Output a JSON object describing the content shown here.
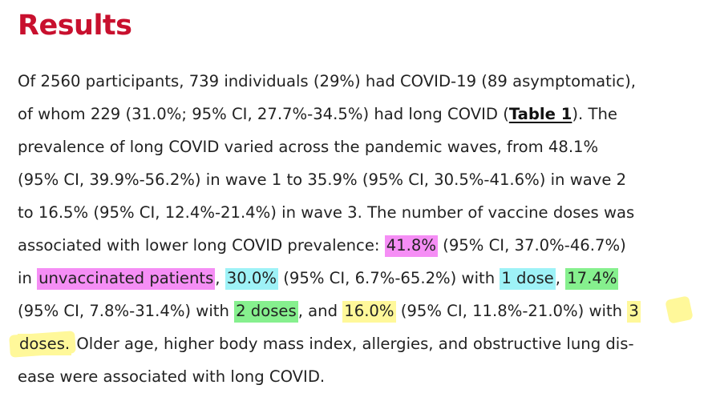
{
  "heading": "Results",
  "lines": [
    [
      {
        "t": "Of 2560 participants, 739 individuals (29%) had COVID-19 (89 asymptomatic),"
      }
    ],
    [
      {
        "t": "of whom 229 (31.0%; 95% CI, 27.7%-34.5%) had long COVID ("
      },
      {
        "t": "Table 1",
        "link": true
      },
      {
        "t": "). The"
      }
    ],
    [
      {
        "t": "prevalence of long COVID varied across the pandemic waves, from 48.1%"
      }
    ],
    [
      {
        "t": "(95% CI, 39.9%-56.2%) in wave 1 to 35.9% (95% CI, 30.5%-41.6%) in wave 2"
      }
    ],
    [
      {
        "t": "to 16.5% (95% CI, 12.4%-21.4%) in wave 3. The number of vaccine doses was"
      }
    ],
    [
      {
        "t": "associated with lower long COVID prevalence: "
      },
      {
        "t": "41.8%",
        "hl": "pink"
      },
      {
        "t": " (95% CI, 37.0%-46.7%)"
      }
    ],
    [
      {
        "t": "in "
      },
      {
        "t": "unvaccinated patients",
        "hl": "pink"
      },
      {
        "t": ", "
      },
      {
        "t": "30.0%",
        "hl": "cyan"
      },
      {
        "t": " (95% CI, 6.7%-65.2%) with "
      },
      {
        "t": "1 dose",
        "hl": "cyan"
      },
      {
        "t": ", "
      },
      {
        "t": "17.4%",
        "hl": "green"
      }
    ],
    [
      {
        "t": "(95% CI, 7.8%-31.4%) with "
      },
      {
        "t": "2 doses",
        "hl": "green"
      },
      {
        "t": ", and "
      },
      {
        "t": "16.0%",
        "hl": "yellow"
      },
      {
        "t": " (95% CI, 11.8%-21.0%) with "
      },
      {
        "t": "3",
        "hl": "yellow"
      }
    ],
    [
      {
        "t": "doses.",
        "hl": "yellow"
      },
      {
        "t": " Older age, higher body mass index, allergies, and obstructive lung dis-"
      }
    ],
    [
      {
        "t": "ease were associated with long COVID."
      }
    ]
  ],
  "colors": {
    "heading": "#c8102e",
    "text": "#222222",
    "highlight_pink": "#f58ef5",
    "highlight_cyan": "#9ef2f7",
    "highlight_green": "#86f08e",
    "highlight_yellow": "#fff89a"
  }
}
